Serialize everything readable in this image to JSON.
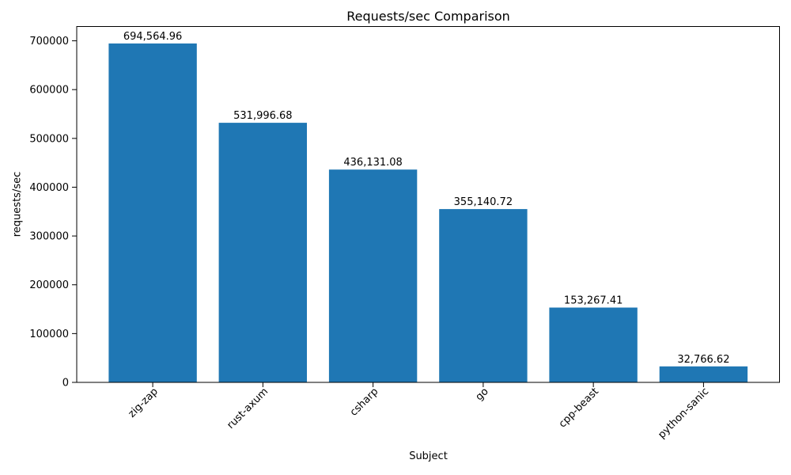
{
  "chart_data": {
    "type": "bar",
    "title": "Requests/sec Comparison",
    "xlabel": "Subject",
    "ylabel": "requests/sec",
    "categories": [
      "zig-zap",
      "rust-axum",
      "csharp",
      "go",
      "cpp-beast",
      "python-sanic"
    ],
    "values": [
      694564.96,
      531996.68,
      436131.08,
      355140.72,
      153267.41,
      32766.62
    ],
    "value_labels": [
      "694,564.96",
      "531,996.68",
      "436,131.08",
      "355,140.72",
      "153,267.41",
      "32,766.62"
    ],
    "ytick_values": [
      0,
      100000,
      200000,
      300000,
      400000,
      500000,
      600000,
      700000
    ],
    "ytick_labels": [
      "0",
      "100000",
      "200000",
      "300000",
      "400000",
      "500000",
      "600000",
      "700000"
    ],
    "ylim": [
      0,
      729293
    ],
    "bar_color": "#1f77b4",
    "axis_color": "#000000",
    "grid": false,
    "legend_position": "none"
  }
}
